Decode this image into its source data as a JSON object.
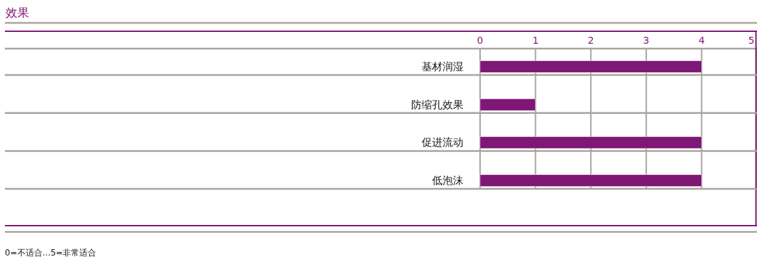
{
  "chart_data": {
    "type": "bar",
    "orientation": "horizontal",
    "title": "效果",
    "categories": [
      "基材润湿",
      "防缩孔效果",
      "促进流动",
      "低泡沫"
    ],
    "values": [
      4,
      1,
      4,
      4
    ],
    "color": "#7f1775",
    "xlim": [
      0,
      5
    ],
    "xticks": [
      0,
      1,
      2,
      3,
      4,
      5
    ],
    "grid": "x",
    "annotations": [
      "0=不适合…5=非常适合"
    ]
  }
}
